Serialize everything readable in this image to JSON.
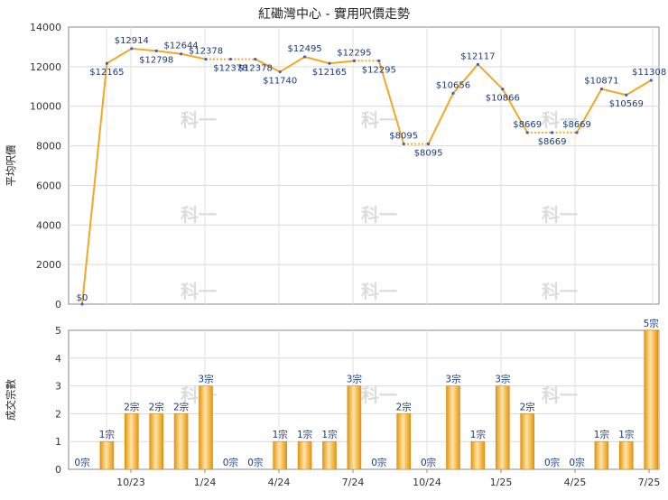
{
  "chart_data": [
    {
      "type": "line",
      "title": "紅磡灣中心 - 實用呎價走勢",
      "ylabel": "平均呎價",
      "ylim": [
        0,
        14000
      ],
      "yticks": [
        "0",
        "2000",
        "4000",
        "6000",
        "8000",
        "10000",
        "12000",
        "14000"
      ],
      "grid": true,
      "line_color": "#f5a623",
      "marker_color": "#4060c0",
      "watermark": "科一",
      "points": [
        {
          "value": 0,
          "label": "$0"
        },
        {
          "value": 12165,
          "label": "$12165"
        },
        {
          "value": 12914,
          "label": "$12914"
        },
        {
          "value": 12798,
          "label": "$12798"
        },
        {
          "value": 12644,
          "label": "$12644"
        },
        {
          "value": 12378,
          "label": "$12378"
        },
        {
          "value": 12378,
          "label": "$12378"
        },
        {
          "value": 12378,
          "label": "$12378"
        },
        {
          "value": 11740,
          "label": "$11740"
        },
        {
          "value": 12495,
          "label": "$12495"
        },
        {
          "value": 12165,
          "label": "$12165"
        },
        {
          "value": 12295,
          "label": "$12295"
        },
        {
          "value": 12295,
          "label": "$12295"
        },
        {
          "value": 8095,
          "label": "$8095"
        },
        {
          "value": 8095,
          "label": "$8095"
        },
        {
          "value": 10656,
          "label": "$10656"
        },
        {
          "value": 12117,
          "label": "$12117"
        },
        {
          "value": 10866,
          "label": "$10866"
        },
        {
          "value": 8669,
          "label": "$8669"
        },
        {
          "value": 8669,
          "label": "$8669"
        },
        {
          "value": 8669,
          "label": "$8669"
        },
        {
          "value": 10871,
          "label": "$10871"
        },
        {
          "value": 10569,
          "label": "$10569"
        },
        {
          "value": 11308,
          "label": "$11308"
        }
      ]
    },
    {
      "type": "bar",
      "ylabel": "成交宗數",
      "ylim": [
        0,
        5
      ],
      "yticks": [
        "0",
        "1",
        "2",
        "3",
        "4",
        "5"
      ],
      "grid": true,
      "bar_color": "#f5a623",
      "bar_highlight": "#fde6a8",
      "watermark": "科一",
      "x_tick_labels": [
        "10/23",
        "1/24",
        "4/24",
        "7/24",
        "10/24",
        "1/25",
        "4/25",
        "7/25"
      ],
      "bars": [
        {
          "value": 0,
          "label": "0宗"
        },
        {
          "value": 1,
          "label": "1宗"
        },
        {
          "value": 2,
          "label": "2宗"
        },
        {
          "value": 2,
          "label": "2宗"
        },
        {
          "value": 2,
          "label": "2宗"
        },
        {
          "value": 3,
          "label": "3宗"
        },
        {
          "value": 0,
          "label": "0宗"
        },
        {
          "value": 0,
          "label": "0宗"
        },
        {
          "value": 1,
          "label": "1宗"
        },
        {
          "value": 1,
          "label": "1宗"
        },
        {
          "value": 1,
          "label": "1宗"
        },
        {
          "value": 3,
          "label": "3宗"
        },
        {
          "value": 0,
          "label": "0宗"
        },
        {
          "value": 2,
          "label": "2宗"
        },
        {
          "value": 0,
          "label": "0宗"
        },
        {
          "value": 3,
          "label": "3宗"
        },
        {
          "value": 1,
          "label": "1宗"
        },
        {
          "value": 3,
          "label": "3宗"
        },
        {
          "value": 2,
          "label": "2宗"
        },
        {
          "value": 0,
          "label": "0宗"
        },
        {
          "value": 0,
          "label": "0宗"
        },
        {
          "value": 1,
          "label": "1宗"
        },
        {
          "value": 1,
          "label": "1宗"
        },
        {
          "value": 5,
          "label": "5宗"
        }
      ]
    }
  ]
}
